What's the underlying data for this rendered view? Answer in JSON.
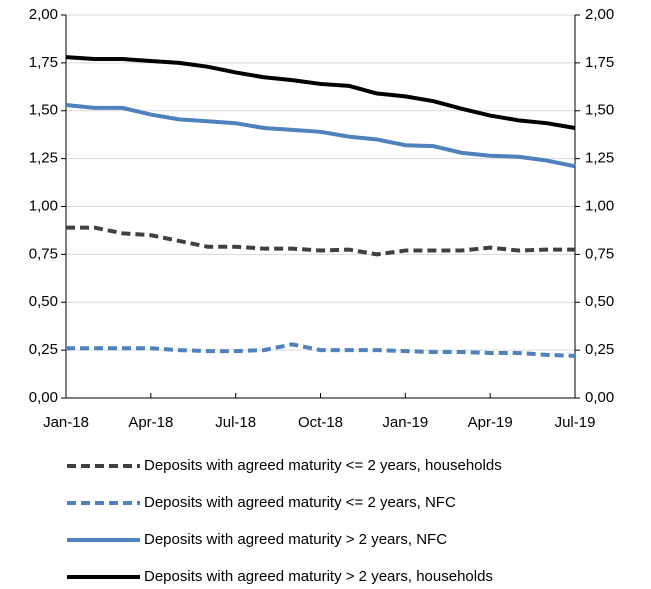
{
  "chart_data": {
    "type": "line",
    "categories": [
      "Jan-18",
      null,
      null,
      "Apr-18",
      null,
      null,
      "Jul-18",
      null,
      null,
      "Oct-18",
      null,
      null,
      "Jan-19",
      null,
      null,
      "Apr-19",
      null,
      null,
      "Jul-19"
    ],
    "ylim": [
      0,
      2
    ],
    "yticks": [
      {
        "value": 0,
        "label": "0,00"
      },
      {
        "value": 0.25,
        "label": "0,25"
      },
      {
        "value": 0.5,
        "label": "0,50"
      },
      {
        "value": 0.75,
        "label": "0,75"
      },
      {
        "value": 1,
        "label": "1,00"
      },
      {
        "value": 1.25,
        "label": "1,25"
      },
      {
        "value": 1.5,
        "label": "1,50"
      },
      {
        "value": 1.75,
        "label": "1,75"
      },
      {
        "value": 2,
        "label": "2,00"
      }
    ],
    "y2lim": [
      0,
      2
    ],
    "y2ticks": [
      {
        "value": 0,
        "label": "0,00"
      },
      {
        "value": 0.25,
        "label": "0,25"
      },
      {
        "value": 0.5,
        "label": "0,50"
      },
      {
        "value": 0.75,
        "label": "0,75"
      },
      {
        "value": 1,
        "label": "1,00"
      },
      {
        "value": 1.25,
        "label": "1,25"
      },
      {
        "value": 1.5,
        "label": "1,50"
      },
      {
        "value": 1.75,
        "label": "1,75"
      },
      {
        "value": 2,
        "label": "2,00"
      }
    ],
    "grid": true,
    "legend": "bottom",
    "series": [
      {
        "name": "Deposits with agreed maturity <= 2 years, households",
        "color": "#404040",
        "line_style": "dashed",
        "values": [
          0.89,
          0.89,
          0.86,
          0.85,
          0.82,
          0.79,
          0.79,
          0.78,
          0.78,
          0.77,
          0.775,
          0.75,
          0.77,
          0.77,
          0.77,
          0.785,
          0.77,
          0.775,
          0.775
        ]
      },
      {
        "name": "Deposits with agreed maturity <= 2 years, NFC",
        "color": "#4f81bd",
        "line_style": "dashed",
        "values": [
          0.26,
          0.26,
          0.26,
          0.26,
          0.25,
          0.245,
          0.245,
          0.25,
          0.28,
          0.25,
          0.25,
          0.25,
          0.245,
          0.24,
          0.24,
          0.235,
          0.235,
          0.225,
          0.22
        ]
      },
      {
        "name": "Deposits with agreed maturity > 2 years, NFC",
        "color": "#4f81bd",
        "line_style": "solid",
        "values": [
          1.53,
          1.515,
          1.515,
          1.48,
          1.455,
          1.445,
          1.435,
          1.41,
          1.4,
          1.39,
          1.365,
          1.35,
          1.32,
          1.315,
          1.28,
          1.265,
          1.26,
          1.24,
          1.21
        ]
      },
      {
        "name": "Deposits with agreed maturity > 2 years, households",
        "color": "#000000",
        "line_style": "solid",
        "values": [
          1.78,
          1.77,
          1.77,
          1.76,
          1.75,
          1.73,
          1.7,
          1.675,
          1.66,
          1.64,
          1.63,
          1.59,
          1.575,
          1.55,
          1.51,
          1.475,
          1.45,
          1.435,
          1.41
        ]
      }
    ]
  }
}
